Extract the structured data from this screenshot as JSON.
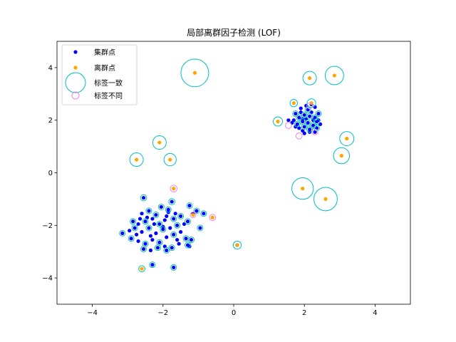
{
  "chart_data": {
    "type": "scatter",
    "title": "局部离群因子检测 (LOF)",
    "xlim": [
      -5,
      5
    ],
    "ylim": [
      -5,
      5
    ],
    "x_ticks": [
      -4,
      -2,
      0,
      2,
      4
    ],
    "y_ticks": [
      -4,
      -2,
      0,
      2,
      4
    ],
    "x_tick_labels": [
      "−4",
      "−2",
      "0",
      "2",
      "4"
    ],
    "y_tick_labels": [
      "−4",
      "−2",
      "0",
      "2",
      "4"
    ],
    "grid": false,
    "legend_position": "top-left",
    "legend": [
      {
        "label": "集群点",
        "color": "#0000ff",
        "kind": "dot"
      },
      {
        "label": "离群点",
        "color": "#ffa500",
        "kind": "dot"
      },
      {
        "label": "标签一致",
        "color": "#00bfbf",
        "kind": "ring"
      },
      {
        "label": "标签不同",
        "color": "#ee82ee",
        "kind": "ring"
      }
    ],
    "colors": {
      "inlier": "#0000ff",
      "outlier": "#ffa500",
      "match_ring": "#00bfbf",
      "mismatch_ring": "#ee82ee"
    },
    "series": [
      {
        "name": "集群点",
        "color": "#0000ff",
        "points": [
          [
            -2.55,
            -0.95
          ],
          [
            -1.75,
            -1.1
          ],
          [
            -1.25,
            -1.25
          ],
          [
            -1.05,
            -1.45
          ],
          [
            -0.85,
            -1.55
          ],
          [
            -0.95,
            -2.1
          ],
          [
            -1.85,
            -1.4
          ],
          [
            -2.05,
            -1.3
          ],
          [
            -2.4,
            -1.45
          ],
          [
            -2.2,
            -1.6
          ],
          [
            -2.6,
            -1.55
          ],
          [
            -2.85,
            -1.85
          ],
          [
            -2.7,
            -1.95
          ],
          [
            -2.5,
            -1.85
          ],
          [
            -2.3,
            -1.75
          ],
          [
            -2.1,
            -1.95
          ],
          [
            -1.9,
            -1.65
          ],
          [
            -1.7,
            -1.75
          ],
          [
            -1.5,
            -1.65
          ],
          [
            -1.3,
            -1.85
          ],
          [
            -1.15,
            -1.55
          ],
          [
            -1.6,
            -2.0
          ],
          [
            -1.8,
            -2.1
          ],
          [
            -2.0,
            -2.15
          ],
          [
            -2.2,
            -2.3
          ],
          [
            -2.4,
            -2.1
          ],
          [
            -2.6,
            -2.25
          ],
          [
            -2.8,
            -2.1
          ],
          [
            -2.75,
            -2.35
          ],
          [
            -2.9,
            -2.5
          ],
          [
            -2.7,
            -2.6
          ],
          [
            -2.5,
            -2.7
          ],
          [
            -2.3,
            -2.55
          ],
          [
            -2.1,
            -2.65
          ],
          [
            -1.9,
            -2.45
          ],
          [
            -1.7,
            -2.35
          ],
          [
            -1.5,
            -2.25
          ],
          [
            -1.35,
            -2.5
          ],
          [
            -1.55,
            -2.7
          ],
          [
            -1.75,
            -2.85
          ],
          [
            -1.95,
            -2.8
          ],
          [
            -2.15,
            -2.85
          ],
          [
            -2.35,
            -2.95
          ],
          [
            -2.55,
            -2.9
          ],
          [
            -1.3,
            -2.75
          ],
          [
            -1.2,
            -2.55
          ],
          [
            -1.9,
            -2.95
          ],
          [
            -2.0,
            -2.05
          ],
          [
            -2.25,
            -1.95
          ],
          [
            -1.65,
            -1.55
          ],
          [
            -2.45,
            -1.7
          ],
          [
            -2.95,
            -2.2
          ],
          [
            -3.15,
            -2.3
          ],
          [
            -1.85,
            -1.5
          ],
          [
            -1.4,
            -1.95
          ],
          [
            -1.95,
            -1.8
          ],
          [
            -2.65,
            -1.75
          ],
          [
            -2.35,
            -2.4
          ],
          [
            -1.6,
            -2.55
          ],
          [
            -1.25,
            -2.8
          ],
          [
            -2.3,
            -3.5
          ],
          [
            -1.7,
            -3.6
          ],
          [
            0.1,
            -2.75
          ],
          [
            1.75,
            2.25
          ],
          [
            1.85,
            2.1
          ],
          [
            1.9,
            2.3
          ],
          [
            2.0,
            2.2
          ],
          [
            2.05,
            2.05
          ],
          [
            2.15,
            2.15
          ],
          [
            2.2,
            2.3
          ],
          [
            2.3,
            2.1
          ],
          [
            2.35,
            1.95
          ],
          [
            1.95,
            1.95
          ],
          [
            1.8,
            1.85
          ],
          [
            1.7,
            2.0
          ],
          [
            2.1,
            1.9
          ],
          [
            2.25,
            1.8
          ],
          [
            2.0,
            1.75
          ],
          [
            2.4,
            2.25
          ],
          [
            2.1,
            2.4
          ],
          [
            1.9,
            2.45
          ],
          [
            2.3,
            2.5
          ],
          [
            2.05,
            2.55
          ],
          [
            2.15,
            1.65
          ],
          [
            1.95,
            1.6
          ],
          [
            2.35,
            1.7
          ],
          [
            2.4,
            2.0
          ],
          [
            1.75,
            1.75
          ],
          [
            1.65,
            1.9
          ],
          [
            2.25,
            2.0
          ],
          [
            1.95,
            2.05
          ],
          [
            2.2,
            2.6
          ],
          [
            2.15,
            1.55
          ],
          [
            2.0,
            1.5
          ],
          [
            2.3,
            1.55
          ],
          [
            1.85,
            1.7
          ],
          [
            1.55,
            2.0
          ],
          [
            2.45,
            1.85
          ]
        ]
      },
      {
        "name": "离群点",
        "color": "#ffa500",
        "points": [
          [
            -1.1,
            3.8
          ],
          [
            2.15,
            3.6
          ],
          [
            2.85,
            3.7
          ],
          [
            1.7,
            2.65
          ],
          [
            2.2,
            2.65
          ],
          [
            1.25,
            1.95
          ],
          [
            3.2,
            1.3
          ],
          [
            3.05,
            0.65
          ],
          [
            -2.1,
            1.15
          ],
          [
            -2.75,
            0.5
          ],
          [
            -1.8,
            0.5
          ],
          [
            1.95,
            -0.6
          ],
          [
            2.6,
            -1.0
          ],
          [
            -1.7,
            -0.6
          ],
          [
            -1.15,
            -1.6
          ],
          [
            -0.6,
            -1.7
          ],
          [
            -2.6,
            -3.65
          ],
          [
            0.1,
            -2.75
          ]
        ]
      }
    ],
    "match_rings": [
      {
        "x": -1.1,
        "y": 3.8,
        "r": 0.45
      },
      {
        "x": 2.15,
        "y": 3.6,
        "r": 0.22
      },
      {
        "x": 2.85,
        "y": 3.7,
        "r": 0.3
      },
      {
        "x": 1.7,
        "y": 2.65,
        "r": 0.12
      },
      {
        "x": 2.2,
        "y": 2.65,
        "r": 0.14
      },
      {
        "x": 1.25,
        "y": 1.95,
        "r": 0.15
      },
      {
        "x": 3.2,
        "y": 1.3,
        "r": 0.23
      },
      {
        "x": 3.05,
        "y": 0.65,
        "r": 0.26
      },
      {
        "x": -2.1,
        "y": 1.15,
        "r": 0.22
      },
      {
        "x": -2.75,
        "y": 0.5,
        "r": 0.22
      },
      {
        "x": -1.8,
        "y": 0.5,
        "r": 0.2
      },
      {
        "x": 1.95,
        "y": -0.6,
        "r": 0.35
      },
      {
        "x": 2.6,
        "y": -1.0,
        "r": 0.38
      },
      {
        "x": -2.6,
        "y": -3.65,
        "r": 0.1
      },
      {
        "x": 0.1,
        "y": -2.75,
        "r": 0.13
      },
      {
        "x": -2.55,
        "y": -0.95,
        "r": 0.1
      },
      {
        "x": -1.75,
        "y": -1.1,
        "r": 0.1
      },
      {
        "x": -1.7,
        "y": -3.6,
        "r": 0.09
      },
      {
        "x": -2.3,
        "y": -3.5,
        "r": 0.09
      },
      {
        "x": 1.75,
        "y": 2.25,
        "r": 0.08
      },
      {
        "x": 2.35,
        "y": 1.95,
        "r": 0.08
      },
      {
        "x": 1.85,
        "y": 2.1,
        "r": 0.08
      },
      {
        "x": 2.0,
        "y": 2.2,
        "r": 0.08
      },
      {
        "x": 2.15,
        "y": 2.15,
        "r": 0.08
      },
      {
        "x": 2.3,
        "y": 2.1,
        "r": 0.08
      },
      {
        "x": 1.95,
        "y": 1.95,
        "r": 0.08
      },
      {
        "x": 2.1,
        "y": 1.9,
        "r": 0.08
      },
      {
        "x": 2.25,
        "y": 1.8,
        "r": 0.08
      },
      {
        "x": 2.0,
        "y": 1.75,
        "r": 0.08
      },
      {
        "x": 1.8,
        "y": 1.85,
        "r": 0.08
      },
      {
        "x": 2.4,
        "y": 2.25,
        "r": 0.08
      },
      {
        "x": 2.1,
        "y": 2.4,
        "r": 0.08
      },
      {
        "x": 2.15,
        "y": 1.65,
        "r": 0.08
      },
      {
        "x": 2.35,
        "y": 1.7,
        "r": 0.08
      },
      {
        "x": -1.25,
        "y": -1.25,
        "r": 0.08
      },
      {
        "x": -1.05,
        "y": -1.45,
        "r": 0.08
      },
      {
        "x": -0.85,
        "y": -1.55,
        "r": 0.08
      },
      {
        "x": -0.95,
        "y": -2.1,
        "r": 0.07
      },
      {
        "x": -1.85,
        "y": -1.4,
        "r": 0.07
      },
      {
        "x": -2.05,
        "y": -1.3,
        "r": 0.07
      },
      {
        "x": -2.4,
        "y": -1.45,
        "r": 0.07
      },
      {
        "x": -2.2,
        "y": -1.6,
        "r": 0.07
      },
      {
        "x": -2.85,
        "y": -1.85,
        "r": 0.07
      },
      {
        "x": -2.5,
        "y": -1.85,
        "r": 0.07
      },
      {
        "x": -2.1,
        "y": -1.95,
        "r": 0.07
      },
      {
        "x": -1.7,
        "y": -1.75,
        "r": 0.07
      },
      {
        "x": -1.5,
        "y": -1.65,
        "r": 0.07
      },
      {
        "x": -1.3,
        "y": -1.85,
        "r": 0.07
      },
      {
        "x": -1.6,
        "y": -2.0,
        "r": 0.07
      },
      {
        "x": -2.0,
        "y": -2.15,
        "r": 0.07
      },
      {
        "x": -2.4,
        "y": -2.1,
        "r": 0.07
      },
      {
        "x": -2.8,
        "y": -2.1,
        "r": 0.07
      },
      {
        "x": -2.9,
        "y": -2.5,
        "r": 0.07
      },
      {
        "x": -2.5,
        "y": -2.7,
        "r": 0.07
      },
      {
        "x": -2.1,
        "y": -2.65,
        "r": 0.07
      },
      {
        "x": -1.7,
        "y": -2.35,
        "r": 0.07
      },
      {
        "x": -1.35,
        "y": -2.5,
        "r": 0.07
      },
      {
        "x": -1.75,
        "y": -2.85,
        "r": 0.07
      },
      {
        "x": -2.15,
        "y": -2.85,
        "r": 0.07
      },
      {
        "x": -2.55,
        "y": -2.9,
        "r": 0.07
      },
      {
        "x": -1.3,
        "y": -2.75,
        "r": 0.07
      },
      {
        "x": -1.9,
        "y": -2.95,
        "r": 0.07
      },
      {
        "x": -3.15,
        "y": -2.3,
        "r": 0.07
      },
      {
        "x": -1.2,
        "y": -2.55,
        "r": 0.07
      }
    ],
    "mismatch_rings": [
      {
        "x": -1.7,
        "y": -0.6,
        "r": 0.11
      },
      {
        "x": -1.15,
        "y": -1.6,
        "r": 0.08
      },
      {
        "x": -0.6,
        "y": -1.7,
        "r": 0.1
      },
      {
        "x": 1.55,
        "y": 1.8,
        "r": 0.1
      },
      {
        "x": 1.85,
        "y": 1.4,
        "r": 0.1
      },
      {
        "x": 2.3,
        "y": 1.55,
        "r": 0.09
      },
      {
        "x": 2.15,
        "y": 2.55,
        "r": 0.08
      }
    ]
  }
}
